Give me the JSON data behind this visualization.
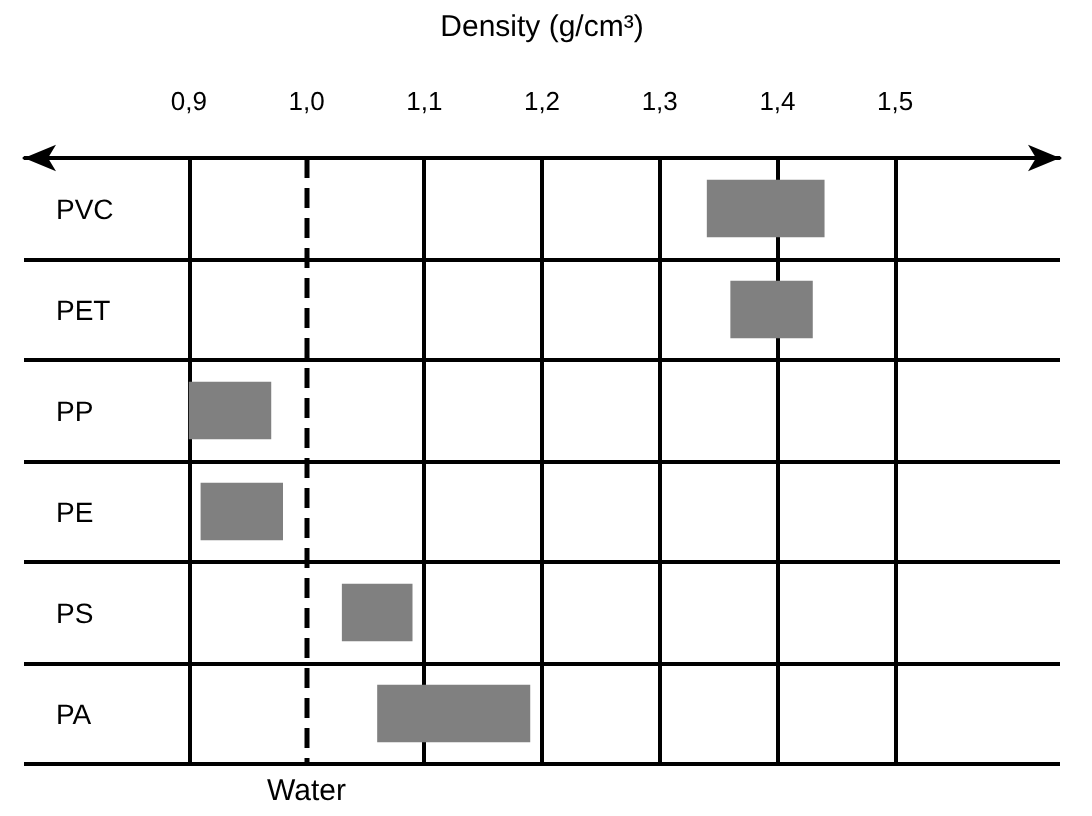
{
  "chart_data": {
    "type": "bar",
    "orientation": "horizontal",
    "xlabel": "Density (g/cm³)",
    "categories": [
      "PVC",
      "PET",
      "PP",
      "PE",
      "PS",
      "PA"
    ],
    "base": [
      1.34,
      1.36,
      0.9,
      0.91,
      1.03,
      1.06
    ],
    "values": [
      0.1,
      0.07,
      0.07,
      0.07,
      0.06,
      0.13
    ],
    "color": "#808080",
    "xlim": [
      0.76,
      1.64
    ],
    "xticks": [
      {
        "value": 0.9,
        "label": "0,9"
      },
      {
        "value": 1.0,
        "label": "1,0"
      },
      {
        "value": 1.1,
        "label": "1,1"
      },
      {
        "value": 1.2,
        "label": "1,2"
      },
      {
        "value": 1.3,
        "label": "1,3"
      },
      {
        "value": 1.4,
        "label": "1,4"
      },
      {
        "value": 1.5,
        "label": "1,5"
      }
    ],
    "grid": true,
    "ref_lines": [
      {
        "axis": "x",
        "value": 1.0,
        "label": "Water",
        "color": "#000000",
        "line_style": "dashed"
      }
    ]
  }
}
